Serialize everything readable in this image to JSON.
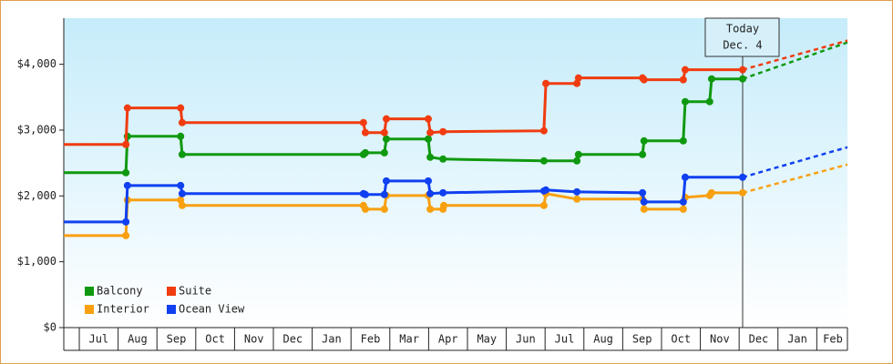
{
  "chart_data": {
    "type": "step-line",
    "annotation": [
      "Today",
      "Dec. 4"
    ],
    "annotation_x": 17.09,
    "xlim": [
      -0.4,
      19.79
    ],
    "ylim": [
      0,
      4700
    ],
    "xticks": [
      {
        "value": 0.5,
        "label": "Jul"
      },
      {
        "value": 1.5,
        "label": "Aug"
      },
      {
        "value": 2.5,
        "label": "Sep"
      },
      {
        "value": 3.5,
        "label": "Oct"
      },
      {
        "value": 4.5,
        "label": "Nov"
      },
      {
        "value": 5.5,
        "label": "Dec"
      },
      {
        "value": 6.5,
        "label": "Jan"
      },
      {
        "value": 7.5,
        "label": "Feb"
      },
      {
        "value": 8.5,
        "label": "Mar"
      },
      {
        "value": 9.5,
        "label": "Apr"
      },
      {
        "value": 10.5,
        "label": "May"
      },
      {
        "value": 11.5,
        "label": "Jun"
      },
      {
        "value": 12.5,
        "label": "Jul"
      },
      {
        "value": 13.5,
        "label": "Aug"
      },
      {
        "value": 14.5,
        "label": "Sep"
      },
      {
        "value": 15.5,
        "label": "Oct"
      },
      {
        "value": 16.5,
        "label": "Nov"
      },
      {
        "value": 17.5,
        "label": "Dec"
      },
      {
        "value": 18.5,
        "label": "Jan"
      },
      {
        "value": 19.5,
        "label": "Feb"
      }
    ],
    "yticks": [
      {
        "value": 0,
        "label": "$0"
      },
      {
        "value": 1000,
        "label": "$1,000"
      },
      {
        "value": 2000,
        "label": "$2,000"
      },
      {
        "value": 3000,
        "label": "$3,000"
      },
      {
        "value": 4000,
        "label": "$4,000"
      }
    ],
    "series": [
      {
        "name": "Balcony",
        "color": "#109910",
        "x": [
          -0.4,
          1.2,
          1.24,
          2.61,
          2.65,
          7.32,
          7.37,
          7.86,
          7.91,
          8.99,
          9.04,
          9.37,
          11.97,
          12.82,
          12.86,
          14.51,
          14.55,
          15.56,
          15.61,
          16.24,
          16.29,
          17.09
        ],
        "values": [
          2353,
          2353,
          2906,
          2906,
          2630,
          2630,
          2656,
          2656,
          2865,
          2865,
          2588,
          2560,
          2533,
          2533,
          2630,
          2630,
          2837,
          2837,
          3432,
          3432,
          3778,
          3778
        ],
        "forecast_x": 19.79,
        "forecast_value": 4332
      },
      {
        "name": "Suite",
        "color": "#f03c10",
        "x": [
          -0.4,
          1.2,
          1.24,
          2.61,
          2.65,
          7.32,
          7.37,
          7.86,
          7.91,
          8.99,
          9.04,
          9.37,
          11.97,
          12.02,
          12.82,
          12.86,
          14.51,
          14.55,
          15.56,
          15.61,
          17.09
        ],
        "values": [
          2782,
          2782,
          3336,
          3336,
          3114,
          3114,
          2962,
          2962,
          3170,
          3170,
          2962,
          2976,
          2990,
          3709,
          3709,
          3792,
          3792,
          3765,
          3765,
          3917,
          3917
        ],
        "forecast_x": 19.79,
        "forecast_value": 4360
      },
      {
        "name": "Interior",
        "color": "#f8a010",
        "x": [
          -0.4,
          1.2,
          1.24,
          2.61,
          2.65,
          7.32,
          7.37,
          7.86,
          7.91,
          8.99,
          9.04,
          9.37,
          9.39,
          11.97,
          12.02,
          12.82,
          14.51,
          14.55,
          15.56,
          15.61,
          16.24,
          16.29,
          17.09
        ],
        "values": [
          1398,
          1398,
          1938,
          1938,
          1855,
          1855,
          1799,
          1799,
          2007,
          2007,
          1799,
          1799,
          1855,
          1855,
          2035,
          1952,
          1952,
          1799,
          1799,
          1979,
          2007,
          2048,
          2048
        ],
        "forecast_x": 19.79,
        "forecast_value": 2477
      },
      {
        "name": "Ocean View",
        "color": "#1040f0",
        "x": [
          -0.4,
          1.2,
          1.24,
          2.61,
          2.65,
          7.32,
          7.37,
          7.86,
          7.91,
          8.99,
          9.04,
          9.37,
          11.97,
          12.02,
          12.82,
          14.51,
          14.55,
          15.56,
          15.61,
          17.09
        ],
        "values": [
          1606,
          1606,
          2159,
          2159,
          2035,
          2035,
          2021,
          2021,
          2228,
          2228,
          2035,
          2048,
          2076,
          2090,
          2062,
          2048,
          1910,
          1910,
          2284,
          2284
        ],
        "forecast_x": 19.79,
        "forecast_value": 2740
      }
    ]
  }
}
